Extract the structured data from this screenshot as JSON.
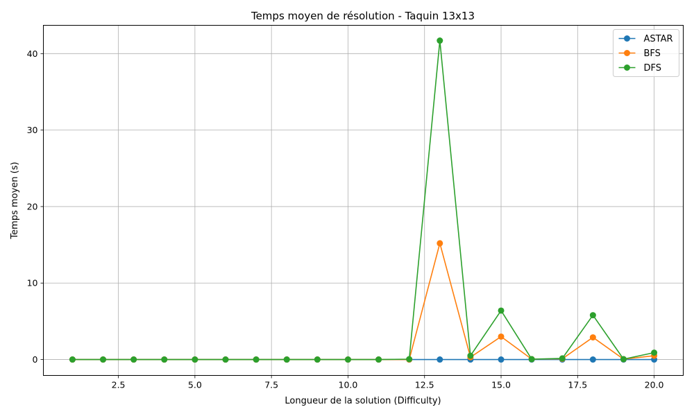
{
  "chart_data": {
    "type": "line",
    "title": "Temps moyen de résolution - Taquin 13x13",
    "xlabel": "Longueur de la solution (Difficulty)",
    "ylabel": "Temps moyen (s)",
    "xlim": [
      0.05,
      20.95
    ],
    "ylim": [
      -2.08,
      43.7
    ],
    "xticks": [
      2.5,
      5.0,
      7.5,
      10.0,
      12.5,
      15.0,
      17.5,
      20.0
    ],
    "xtick_labels": [
      "2.5",
      "5.0",
      "7.5",
      "10.0",
      "12.5",
      "15.0",
      "17.5",
      "20.0"
    ],
    "yticks": [
      0,
      10,
      20,
      30,
      40
    ],
    "ytick_labels": [
      "0",
      "10",
      "20",
      "30",
      "40"
    ],
    "grid": true,
    "legend_position": "top-right",
    "x": [
      1,
      2,
      3,
      4,
      5,
      6,
      7,
      8,
      9,
      10,
      11,
      12,
      13,
      14,
      15,
      16,
      17,
      18,
      19,
      20
    ],
    "series": [
      {
        "name": "ASTAR",
        "color": "#1f77b4",
        "values": [
          0,
          0,
          0,
          0,
          0,
          0,
          0,
          0,
          0,
          0,
          0,
          0,
          0,
          0,
          0,
          0,
          0,
          0,
          0,
          0
        ]
      },
      {
        "name": "BFS",
        "color": "#ff7f0e",
        "values": [
          0,
          0,
          0,
          0,
          0,
          0,
          0,
          0,
          0,
          0,
          0,
          0,
          15.2,
          0.3,
          3.0,
          0.05,
          0.1,
          2.9,
          0.05,
          0.5
        ]
      },
      {
        "name": "DFS",
        "color": "#2ca02c",
        "values": [
          0,
          0,
          0,
          0,
          0,
          0,
          0,
          0,
          0,
          0,
          0,
          0.05,
          41.7,
          0.5,
          6.4,
          0.05,
          0.15,
          5.8,
          0.05,
          0.9
        ]
      }
    ]
  }
}
